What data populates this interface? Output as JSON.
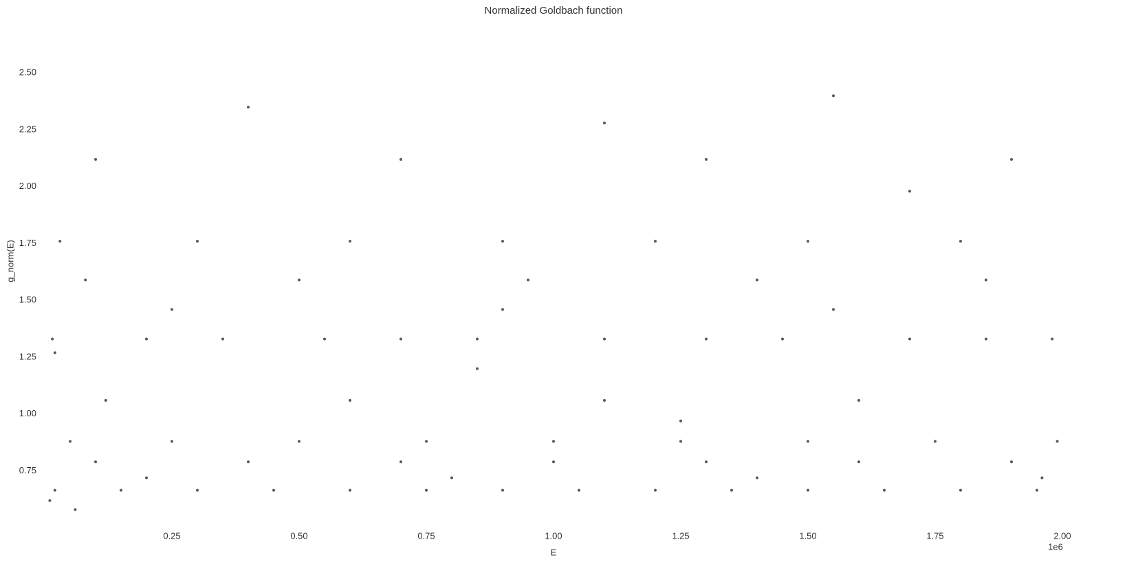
{
  "chart_data": {
    "type": "scatter",
    "title": "Normalized Goldbach function",
    "x_label": "E",
    "y_label": "g_norm(E)",
    "x_offset_label": "1e6",
    "color": "#222222",
    "grid": false,
    "xlim": [
      0,
      2000000
    ],
    "ylim": [
      0.51,
      2.7
    ],
    "xticks": [
      {
        "value": 250000,
        "label": "0.25"
      },
      {
        "value": 500000,
        "label": "0.50"
      },
      {
        "value": 750000,
        "label": "0.75"
      },
      {
        "value": 1000000,
        "label": "1.00"
      },
      {
        "value": 1250000,
        "label": "1.25"
      },
      {
        "value": 1500000,
        "label": "1.50"
      },
      {
        "value": 1750000,
        "label": "1.75"
      },
      {
        "value": 2000000,
        "label": "2.00"
      }
    ],
    "yticks": [
      0.75,
      {
        "value": 1.0,
        "label": "1.00"
      },
      1.25,
      {
        "value": 1.5,
        "label": "1.50"
      },
      1.75,
      {
        "value": 2.0,
        "label": "2.00"
      },
      2.25,
      {
        "value": 2.5,
        "label": "2.50"
      }
    ],
    "x": [
      20000,
      150000,
      300000,
      450000,
      600000,
      750000,
      900000,
      1050000,
      1200000,
      1350000,
      1500000,
      1650000,
      1800000,
      1950000,
      50000,
      250000,
      500000,
      750000,
      1000000,
      1250000,
      1500000,
      1750000,
      1990000,
      100000,
      400000,
      700000,
      1000000,
      1300000,
      1600000,
      1900000,
      15000,
      200000,
      350000,
      550000,
      700000,
      850000,
      1100000,
      1300000,
      1450000,
      1700000,
      1850000,
      1980000,
      30000,
      300000,
      600000,
      900000,
      1200000,
      1500000,
      1800000,
      80000,
      500000,
      950000,
      1400000,
      1850000,
      120000,
      600000,
      1100000,
      1600000,
      100000,
      700000,
      1300000,
      1900000,
      250000,
      900000,
      1550000,
      200000,
      800000,
      1400000,
      1960000,
      400000,
      1100000,
      1700000,
      850000,
      1250000,
      60000,
      10000,
      20000,
      1550000
    ],
    "y": [
      0.665,
      0.665,
      0.665,
      0.665,
      0.665,
      0.665,
      0.665,
      0.665,
      0.665,
      0.665,
      0.665,
      0.665,
      0.665,
      0.665,
      0.88,
      0.88,
      0.88,
      0.88,
      0.88,
      0.88,
      0.88,
      0.88,
      0.88,
      0.79,
      0.79,
      0.79,
      0.79,
      0.79,
      0.79,
      0.79,
      1.33,
      1.33,
      1.33,
      1.33,
      1.33,
      1.33,
      1.33,
      1.33,
      1.33,
      1.33,
      1.33,
      1.33,
      1.76,
      1.76,
      1.76,
      1.76,
      1.76,
      1.76,
      1.76,
      1.59,
      1.59,
      1.59,
      1.59,
      1.59,
      1.06,
      1.06,
      1.06,
      1.06,
      2.12,
      2.12,
      2.12,
      2.12,
      1.46,
      1.46,
      1.46,
      0.72,
      0.72,
      0.72,
      0.72,
      2.35,
      2.28,
      1.98,
      1.2,
      0.97,
      0.58,
      0.62,
      1.27,
      2.4
    ]
  }
}
